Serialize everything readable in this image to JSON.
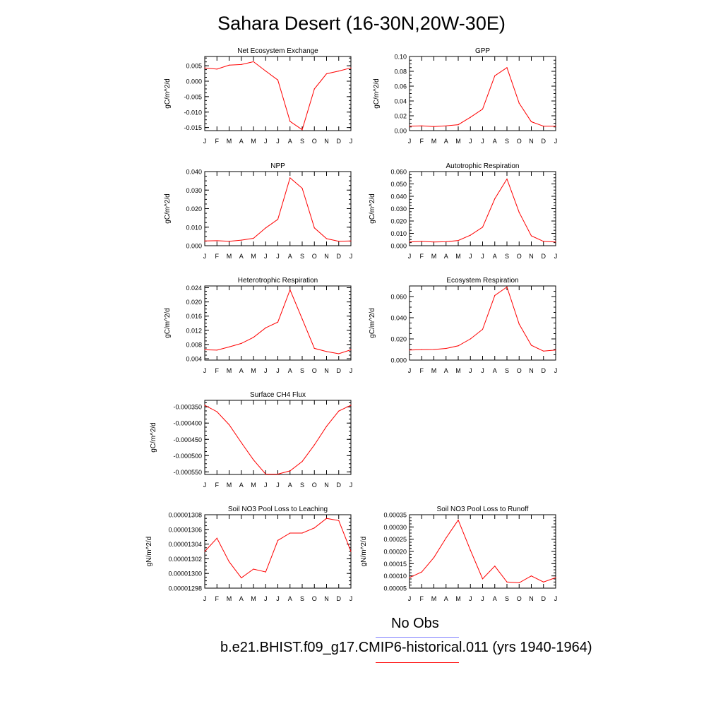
{
  "title": "Sahara Desert (16-30N,20W-30E)",
  "legend": {
    "items": [
      {
        "label": "No Obs",
        "color": "#8080ff"
      },
      {
        "label": "b.e21.BHIST.f09_g17.CMIP6-historical.011 (yrs 1940-1964)",
        "color": "#ff0000"
      }
    ]
  },
  "chart_data": [
    {
      "type": "line",
      "title": "Net Ecosystem Exchange",
      "ylabel": "gC/m^2/d",
      "categories": [
        "J",
        "F",
        "M",
        "A",
        "M",
        "J",
        "J",
        "A",
        "S",
        "O",
        "N",
        "D",
        "J"
      ],
      "ylim": [
        -0.016,
        0.008
      ],
      "yticks": [
        "0.005",
        "0.000",
        "-0.005",
        "-0.010",
        "-0.015"
      ],
      "ytick_values": [
        0.005,
        0.0,
        -0.005,
        -0.01,
        -0.015
      ],
      "series": [
        {
          "color": "#ff0000",
          "values": [
            0.0043,
            0.0039,
            0.0052,
            0.0054,
            0.0063,
            0.0033,
            0.0004,
            -0.013,
            -0.0157,
            -0.0025,
            0.0024,
            0.0033,
            0.0043
          ]
        }
      ]
    },
    {
      "type": "line",
      "title": "GPP",
      "ylabel": "gC/m^2/d",
      "categories": [
        "J",
        "F",
        "M",
        "A",
        "M",
        "J",
        "J",
        "A",
        "S",
        "O",
        "N",
        "D",
        "J"
      ],
      "ylim": [
        0.0,
        0.1
      ],
      "yticks": [
        "0.10",
        "0.08",
        "0.06",
        "0.04",
        "0.02",
        "0.00"
      ],
      "ytick_values": [
        0.1,
        0.08,
        0.06,
        0.04,
        0.02,
        0.0
      ],
      "series": [
        {
          "color": "#ff0000",
          "values": [
            0.006,
            0.0065,
            0.0055,
            0.0065,
            0.008,
            0.018,
            0.029,
            0.074,
            0.085,
            0.037,
            0.012,
            0.006,
            0.006
          ]
        }
      ]
    },
    {
      "type": "line",
      "title": "NPP",
      "ylabel": "gC/m^2/d",
      "categories": [
        "J",
        "F",
        "M",
        "A",
        "M",
        "J",
        "J",
        "A",
        "S",
        "O",
        "N",
        "D",
        "J"
      ],
      "ylim": [
        0.0,
        0.04
      ],
      "yticks": [
        "0.040",
        "0.030",
        "0.020",
        "0.010",
        "0.000"
      ],
      "ytick_values": [
        0.04,
        0.03,
        0.02,
        0.01,
        0.0
      ],
      "series": [
        {
          "color": "#ff0000",
          "values": [
            0.0026,
            0.0027,
            0.0024,
            0.003,
            0.004,
            0.0096,
            0.0142,
            0.0366,
            0.031,
            0.0096,
            0.0038,
            0.0024,
            0.0026
          ]
        }
      ]
    },
    {
      "type": "line",
      "title": "Autotrophic Respiration",
      "ylabel": "gC/m^2/d",
      "categories": [
        "J",
        "F",
        "M",
        "A",
        "M",
        "J",
        "J",
        "A",
        "S",
        "O",
        "N",
        "D",
        "J"
      ],
      "ylim": [
        0.0,
        0.06
      ],
      "yticks": [
        "0.060",
        "0.050",
        "0.040",
        "0.030",
        "0.020",
        "0.010",
        "0.000"
      ],
      "ytick_values": [
        0.06,
        0.05,
        0.04,
        0.03,
        0.02,
        0.01,
        0.0
      ],
      "series": [
        {
          "color": "#ff0000",
          "values": [
            0.003,
            0.0035,
            0.003,
            0.0032,
            0.0042,
            0.0085,
            0.015,
            0.038,
            0.054,
            0.027,
            0.008,
            0.0035,
            0.003
          ]
        }
      ]
    },
    {
      "type": "line",
      "title": "Heterotrophic Respiration",
      "ylabel": "gC/m^2/d",
      "categories": [
        "J",
        "F",
        "M",
        "A",
        "M",
        "J",
        "J",
        "A",
        "S",
        "O",
        "N",
        "D",
        "J"
      ],
      "ylim": [
        0.0036,
        0.0245
      ],
      "yticks": [
        "0.024",
        "0.020",
        "0.016",
        "0.012",
        "0.008",
        "0.004"
      ],
      "ytick_values": [
        0.024,
        0.02,
        0.016,
        0.012,
        0.008,
        0.004
      ],
      "series": [
        {
          "color": "#ff0000",
          "values": [
            0.0065,
            0.0064,
            0.0073,
            0.0083,
            0.01,
            0.0127,
            0.0143,
            0.0234,
            0.0152,
            0.0069,
            0.006,
            0.0054,
            0.0065
          ]
        }
      ]
    },
    {
      "type": "line",
      "title": "Ecosystem Respiration",
      "ylabel": "gC/m^2/d",
      "categories": [
        "J",
        "F",
        "M",
        "A",
        "M",
        "J",
        "J",
        "A",
        "S",
        "O",
        "N",
        "D",
        "J"
      ],
      "ylim": [
        0.0,
        0.07
      ],
      "yticks": [
        "0.060",
        "0.040",
        "0.020",
        "0.000"
      ],
      "ytick_values": [
        0.06,
        0.04,
        0.02,
        0.0
      ],
      "series": [
        {
          "color": "#ff0000",
          "values": [
            0.0095,
            0.0098,
            0.01,
            0.011,
            0.0135,
            0.02,
            0.029,
            0.061,
            0.069,
            0.034,
            0.014,
            0.0085,
            0.0095
          ]
        }
      ]
    },
    {
      "type": "line",
      "title": "Surface CH4 Flux",
      "ylabel": "gC/m^2/d",
      "categories": [
        "J",
        "F",
        "M",
        "A",
        "M",
        "J",
        "J",
        "A",
        "S",
        "O",
        "N",
        "D",
        "J"
      ],
      "ylim": [
        -0.000558,
        -0.00033
      ],
      "yticks": [
        "-0.000350",
        "-0.000400",
        "-0.000450",
        "-0.000500",
        "-0.000550"
      ],
      "ytick_values": [
        -0.00035,
        -0.0004,
        -0.00045,
        -0.0005,
        -0.00055
      ],
      "series": [
        {
          "color": "#ff0000",
          "values": [
            -0.000345,
            -0.000365,
            -0.000405,
            -0.00046,
            -0.000513,
            -0.000557,
            -0.000557,
            -0.000547,
            -0.000518,
            -0.000467,
            -0.00041,
            -0.000363,
            -0.000345
          ]
        }
      ]
    },
    {
      "type": "line",
      "title": "Soil NO3 Pool Loss to Leaching",
      "ylabel": "gN/m^2/d",
      "categories": [
        "J",
        "F",
        "M",
        "A",
        "M",
        "J",
        "J",
        "A",
        "S",
        "O",
        "N",
        "D",
        "J"
      ],
      "ylim": [
        1.298e-05,
        1.308e-05
      ],
      "yticks": [
        "0.00001308",
        "0.00001306",
        "0.00001304",
        "0.00001302",
        "0.00001300",
        "0.00001298"
      ],
      "ytick_values": [
        1.308e-05,
        1.306e-05,
        1.304e-05,
        1.302e-05,
        1.3e-05,
        1.298e-05
      ],
      "series": [
        {
          "color": "#ff0000",
          "values": [
            1.303e-05,
            1.3048e-05,
            1.3016e-05,
            1.2994e-05,
            1.3006e-05,
            1.3002e-05,
            1.3045e-05,
            1.3055e-05,
            1.3055e-05,
            1.3062e-05,
            1.3075e-05,
            1.3072e-05,
            1.303e-05
          ]
        }
      ]
    },
    {
      "type": "line",
      "title": "Soil NO3 Pool Loss to Runoff",
      "ylabel": "gN/m^2/d",
      "categories": [
        "J",
        "F",
        "M",
        "A",
        "M",
        "J",
        "J",
        "A",
        "S",
        "O",
        "N",
        "D",
        "J"
      ],
      "ylim": [
        5e-05,
        0.00035
      ],
      "yticks": [
        "0.00035",
        "0.00030",
        "0.00025",
        "0.00020",
        "0.00015",
        "0.00010",
        "0.00005"
      ],
      "ytick_values": [
        0.00035,
        0.0003,
        0.00025,
        0.0002,
        0.00015,
        0.0001,
        5e-05
      ],
      "series": [
        {
          "color": "#ff0000",
          "values": [
            9.3e-05,
            0.000116,
            0.000175,
            0.000255,
            0.000328,
            0.000205,
            8.8e-05,
            0.00014,
            7.5e-05,
            7.2e-05,
            0.0001,
            7.5e-05,
            9.3e-05
          ]
        }
      ]
    }
  ]
}
